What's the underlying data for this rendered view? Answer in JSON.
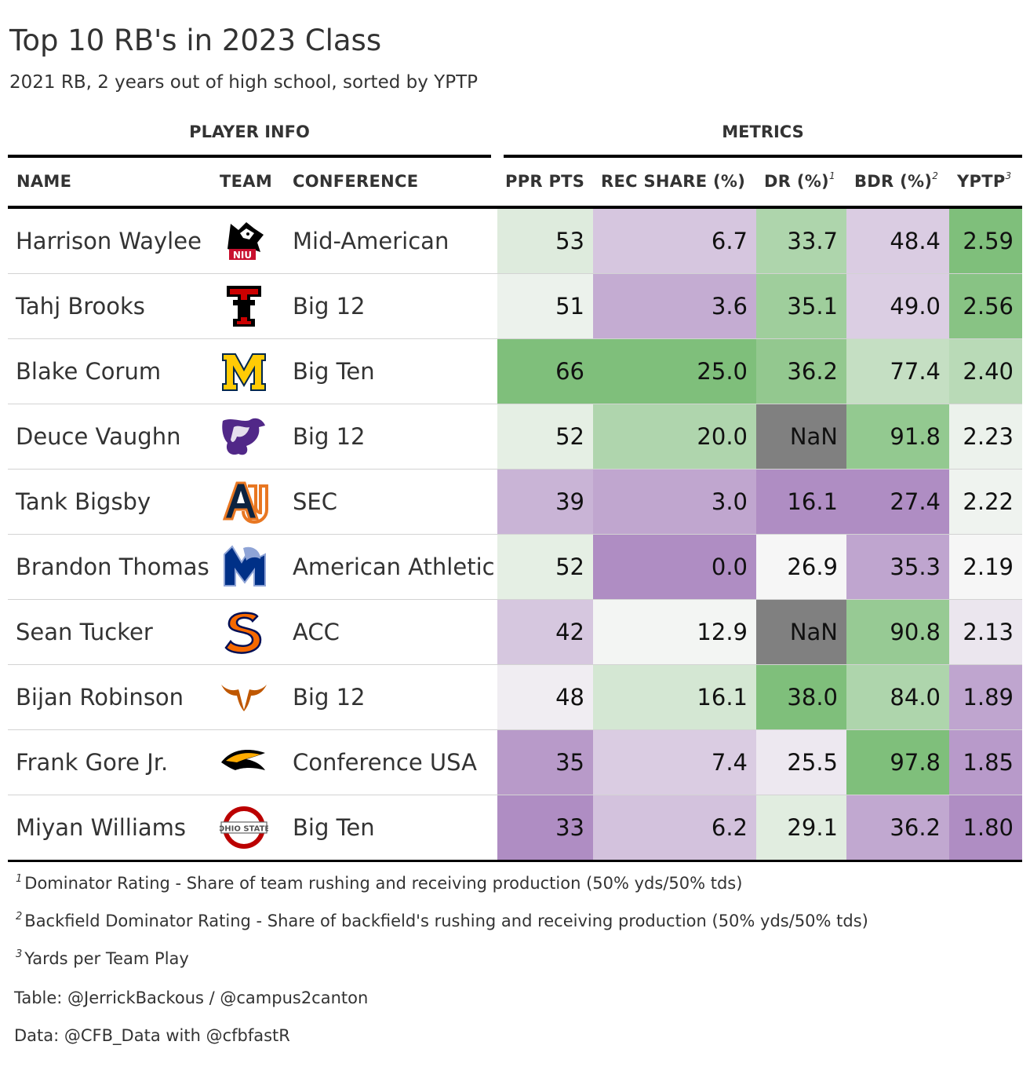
{
  "title": "Top 10 RB's in 2023 Class",
  "subtitle": "2021 RB, 2 years out of high school, sorted by YPTP",
  "spanners": {
    "player_info": "PLAYER INFO",
    "metrics": "METRICS"
  },
  "columns": {
    "name": "NAME",
    "team": "TEAM",
    "conference": "CONFERENCE",
    "ppr": "PPR PTS",
    "rec_share": "REC SHARE (%)",
    "dr": "DR (%)",
    "dr_mark": "1",
    "bdr": "BDR (%)",
    "bdr_mark": "2",
    "yptp": "YPTP",
    "yptp_mark": "3"
  },
  "colors": {
    "scale_low": "#af8dc3",
    "scale_mid": "#f7f7f7",
    "scale_high": "#7fbf7b",
    "na_fill": "#808080"
  },
  "chart_data": {
    "type": "table",
    "metric_keys": [
      "ppr",
      "rec_share",
      "dr",
      "bdr",
      "yptp"
    ],
    "rows": [
      {
        "name": "Harrison Waylee",
        "team_logo": "niu-huskies-logo",
        "conference": "Mid-American",
        "ppr": "53",
        "rec_share": "6.7",
        "dr": "33.7",
        "bdr": "48.4",
        "yptp": "2.59"
      },
      {
        "name": "Tahj Brooks",
        "team_logo": "texas-tech-logo",
        "conference": "Big 12",
        "ppr": "51",
        "rec_share": "3.6",
        "dr": "35.1",
        "bdr": "49.0",
        "yptp": "2.56"
      },
      {
        "name": "Blake Corum",
        "team_logo": "michigan-logo",
        "conference": "Big Ten",
        "ppr": "66",
        "rec_share": "25.0",
        "dr": "36.2",
        "bdr": "77.4",
        "yptp": "2.40"
      },
      {
        "name": "Deuce Vaughn",
        "team_logo": "kansas-state-logo",
        "conference": "Big 12",
        "ppr": "52",
        "rec_share": "20.0",
        "dr": "NaN",
        "bdr": "91.8",
        "yptp": "2.23"
      },
      {
        "name": "Tank Bigsby",
        "team_logo": "auburn-logo",
        "conference": "SEC",
        "ppr": "39",
        "rec_share": "3.0",
        "dr": "16.1",
        "bdr": "27.4",
        "yptp": "2.22"
      },
      {
        "name": "Brandon Thomas",
        "team_logo": "memphis-logo",
        "conference": "American Athletic",
        "ppr": "52",
        "rec_share": "0.0",
        "dr": "26.9",
        "bdr": "35.3",
        "yptp": "2.19"
      },
      {
        "name": "Sean Tucker",
        "team_logo": "syracuse-logo",
        "conference": "ACC",
        "ppr": "42",
        "rec_share": "12.9",
        "dr": "NaN",
        "bdr": "90.8",
        "yptp": "2.13"
      },
      {
        "name": "Bijan Robinson",
        "team_logo": "texas-longhorns-logo",
        "conference": "Big 12",
        "ppr": "48",
        "rec_share": "16.1",
        "dr": "38.0",
        "bdr": "84.0",
        "yptp": "1.89"
      },
      {
        "name": "Frank Gore Jr.",
        "team_logo": "southern-miss-logo",
        "conference": "Conference USA",
        "ppr": "35",
        "rec_share": "7.4",
        "dr": "25.5",
        "bdr": "97.8",
        "yptp": "1.85"
      },
      {
        "name": "Miyan Williams",
        "team_logo": "ohio-state-logo",
        "conference": "Big Ten",
        "ppr": "33",
        "rec_share": "6.2",
        "dr": "29.1",
        "bdr": "36.2",
        "yptp": "1.80"
      }
    ]
  },
  "footnotes": [
    {
      "mark": "1",
      "text": "Dominator Rating - Share of team rushing and receiving production (50% yds/50% tds)"
    },
    {
      "mark": "2",
      "text": "Backfield Dominator Rating - Share of backfield's rushing and receiving production (50% yds/50% tds)"
    },
    {
      "mark": "3",
      "text": "Yards per Team Play"
    }
  ],
  "source_notes": [
    "Table: @JerrickBackous / @campus2canton",
    "Data: @CFB_Data with @cfbfastR"
  ]
}
